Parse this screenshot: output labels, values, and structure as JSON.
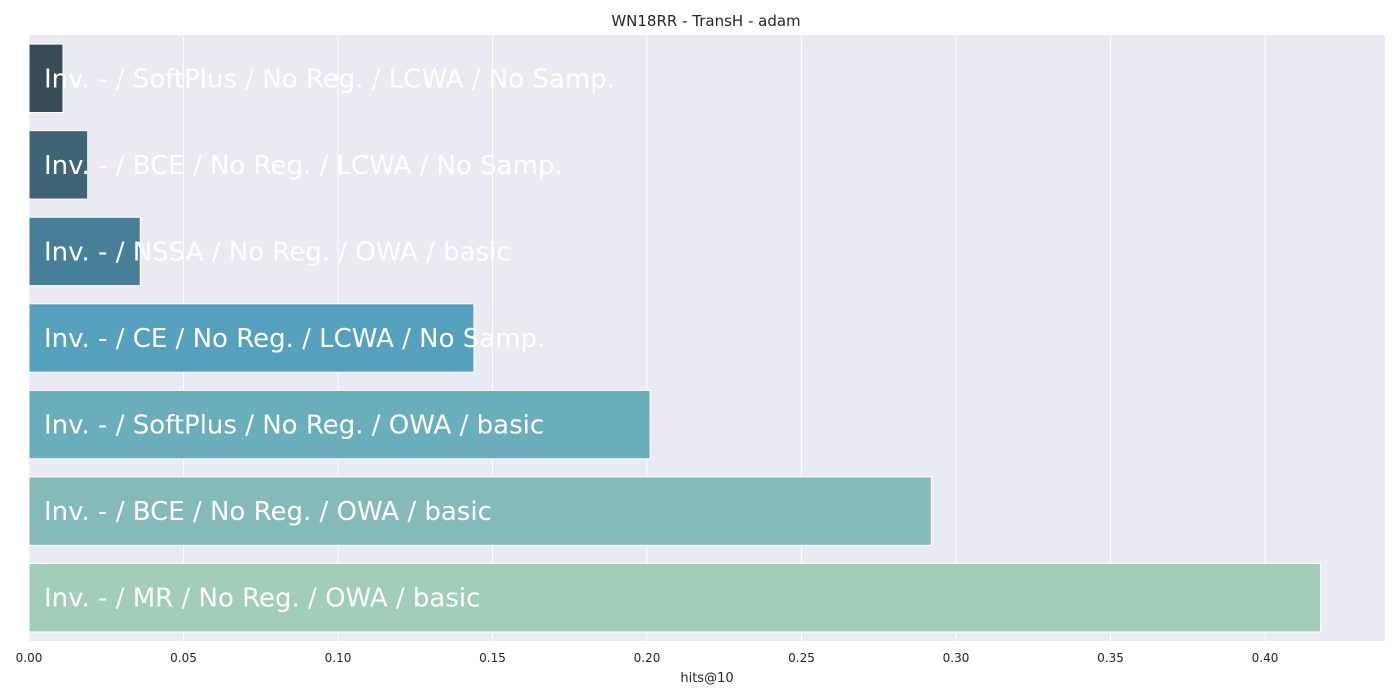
{
  "chart_data": {
    "type": "bar",
    "orientation": "horizontal",
    "title": "WN18RR - TransH - adam",
    "xlabel": "hits@10",
    "ylabel": "",
    "xlim": [
      0,
      0.44
    ],
    "xticks": [
      "0.00",
      "0.05",
      "0.10",
      "0.15",
      "0.20",
      "0.25",
      "0.30",
      "0.35",
      "0.40"
    ],
    "xtick_values": [
      0,
      0.05,
      0.1,
      0.15,
      0.2,
      0.25,
      0.3,
      0.35,
      0.4
    ],
    "grid": true,
    "background": "#eaeaf2",
    "bars": [
      {
        "label": "Inv. - / SoftPlus / No Reg. / LCWA / No Samp.",
        "value": 0.011,
        "color": "#374c55"
      },
      {
        "label": "Inv. - / BCE / No Reg. / LCWA / No Samp.",
        "value": 0.019,
        "color": "#3f6475"
      },
      {
        "label": "Inv. - / NSSA / No Reg. / OWA / basic",
        "value": 0.036,
        "color": "#467f97"
      },
      {
        "label": "Inv. - / CE / No Reg. / LCWA / No Samp.",
        "value": 0.144,
        "color": "#54a0bd"
      },
      {
        "label": "Inv. - / SoftPlus / No Reg. / OWA / basic",
        "value": 0.201,
        "color": "#6aadbb"
      },
      {
        "label": "Inv. - / BCE / No Reg. / OWA / basic",
        "value": 0.292,
        "color": "#84bbb9"
      },
      {
        "label": "Inv. - / MR / No Reg. / OWA / basic",
        "value": 0.418,
        "color": "#a1cdb9"
      }
    ]
  }
}
